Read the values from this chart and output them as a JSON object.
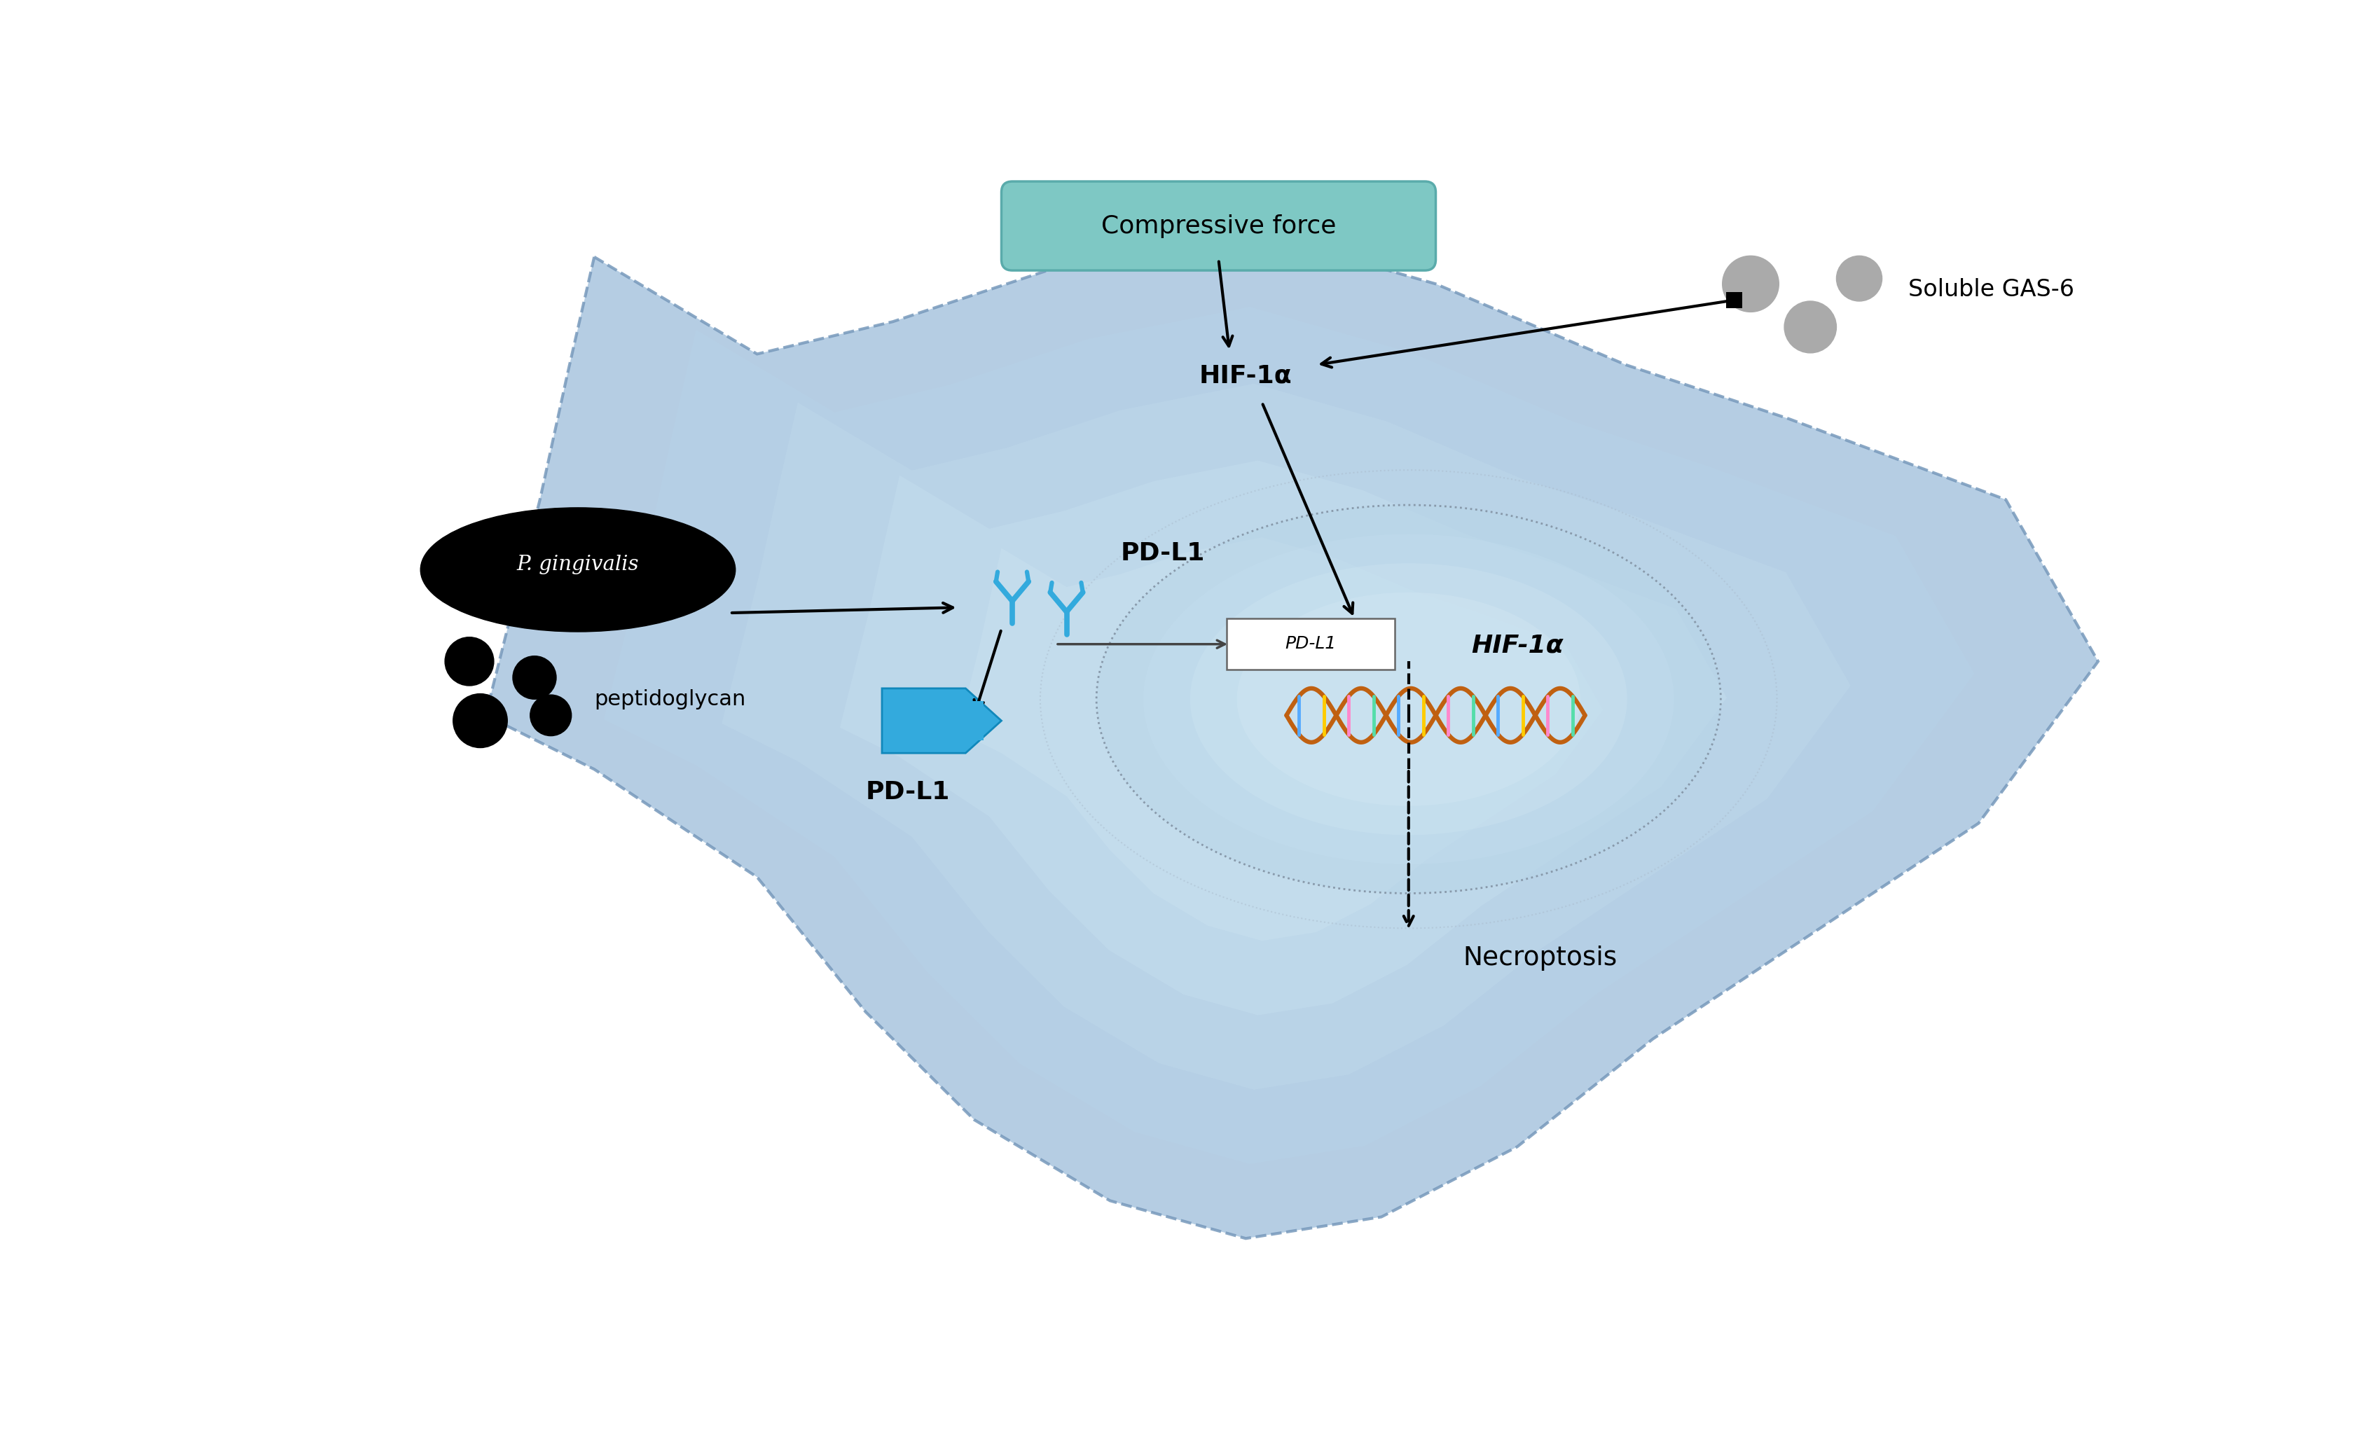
{
  "bg_color": "#ffffff",
  "cell_outer_color": "#a8c5e0",
  "cell_inner_color": "#cde0f0",
  "cell_edge_color": "#7799bb",
  "nucleus_outer_color": "#b8d8ee",
  "nucleus_inner_color": "#daeef8",
  "compressive_text": "Compressive force",
  "compressive_box_color": "#7ec8c4",
  "compressive_box_edge": "#5aabab",
  "hif_label": "HIF-1α",
  "hif_italic": "HIF-1α",
  "pdl1_label": "PD-L1",
  "pdl1_italic": "PD-L1",
  "necroptosis_label": "Necroptosis",
  "soluble_label": "Soluble GAS-6",
  "p_gingivalis_label": "P. gingivalis",
  "peptidoglycan_label": "peptidoglycan",
  "cyan_color": "#33aadd",
  "gray_color": "#999999",
  "black": "#000000",
  "white": "#ffffff",
  "dna_brown": "#b85c00",
  "dna_color1": "#55aaff",
  "dna_color2": "#ffcc00",
  "dna_color3": "#ff88cc",
  "dna_color4": "#44ddaa"
}
